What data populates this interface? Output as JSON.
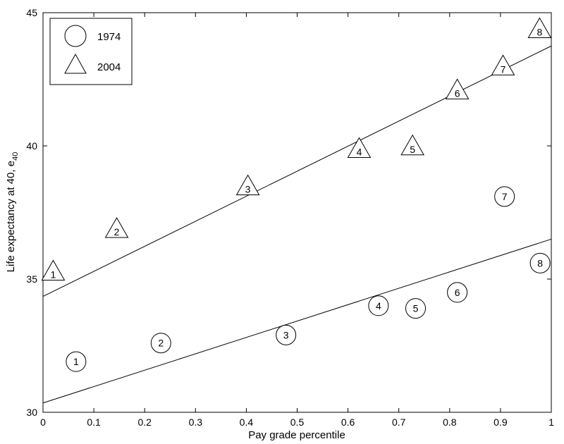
{
  "chart_data": {
    "type": "scatter",
    "xlabel": "Pay grade percentile",
    "ylabel": "Life expectancy at 40, e",
    "ylabel_subscript": "40",
    "xlim": [
      0,
      1
    ],
    "ylim": [
      30,
      45
    ],
    "xticks": [
      "0",
      "0.1",
      "0.2",
      "0.3",
      "0.4",
      "0.5",
      "0.6",
      "0.7",
      "0.8",
      "0.9",
      "1"
    ],
    "yticks": [
      "30",
      "35",
      "40",
      "45"
    ],
    "grid": false,
    "legend_position": "top-left",
    "series": [
      {
        "name": "1974",
        "marker": "circle",
        "points": [
          {
            "label": "1",
            "x": 0.065,
            "y": 31.9
          },
          {
            "label": "2",
            "x": 0.232,
            "y": 32.6
          },
          {
            "label": "3",
            "x": 0.478,
            "y": 32.9
          },
          {
            "label": "4",
            "x": 0.66,
            "y": 34.0
          },
          {
            "label": "5",
            "x": 0.733,
            "y": 33.9
          },
          {
            "label": "6",
            "x": 0.815,
            "y": 34.5
          },
          {
            "label": "7",
            "x": 0.908,
            "y": 38.1
          },
          {
            "label": "8",
            "x": 0.978,
            "y": 35.6
          }
        ],
        "fit_line": {
          "x": [
            0,
            1
          ],
          "y": [
            30.35,
            36.5
          ]
        }
      },
      {
        "name": "2004",
        "marker": "triangle",
        "points": [
          {
            "label": "1",
            "x": 0.02,
            "y": 35.2
          },
          {
            "label": "2",
            "x": 0.145,
            "y": 36.8
          },
          {
            "label": "3",
            "x": 0.403,
            "y": 38.4
          },
          {
            "label": "4",
            "x": 0.622,
            "y": 39.8
          },
          {
            "label": "5",
            "x": 0.727,
            "y": 39.9
          },
          {
            "label": "6",
            "x": 0.815,
            "y": 42.0
          },
          {
            "label": "7",
            "x": 0.905,
            "y": 42.9
          },
          {
            "label": "8",
            "x": 0.977,
            "y": 44.3
          }
        ],
        "fit_line": {
          "x": [
            0,
            1
          ],
          "y": [
            34.35,
            43.75
          ]
        }
      }
    ]
  }
}
